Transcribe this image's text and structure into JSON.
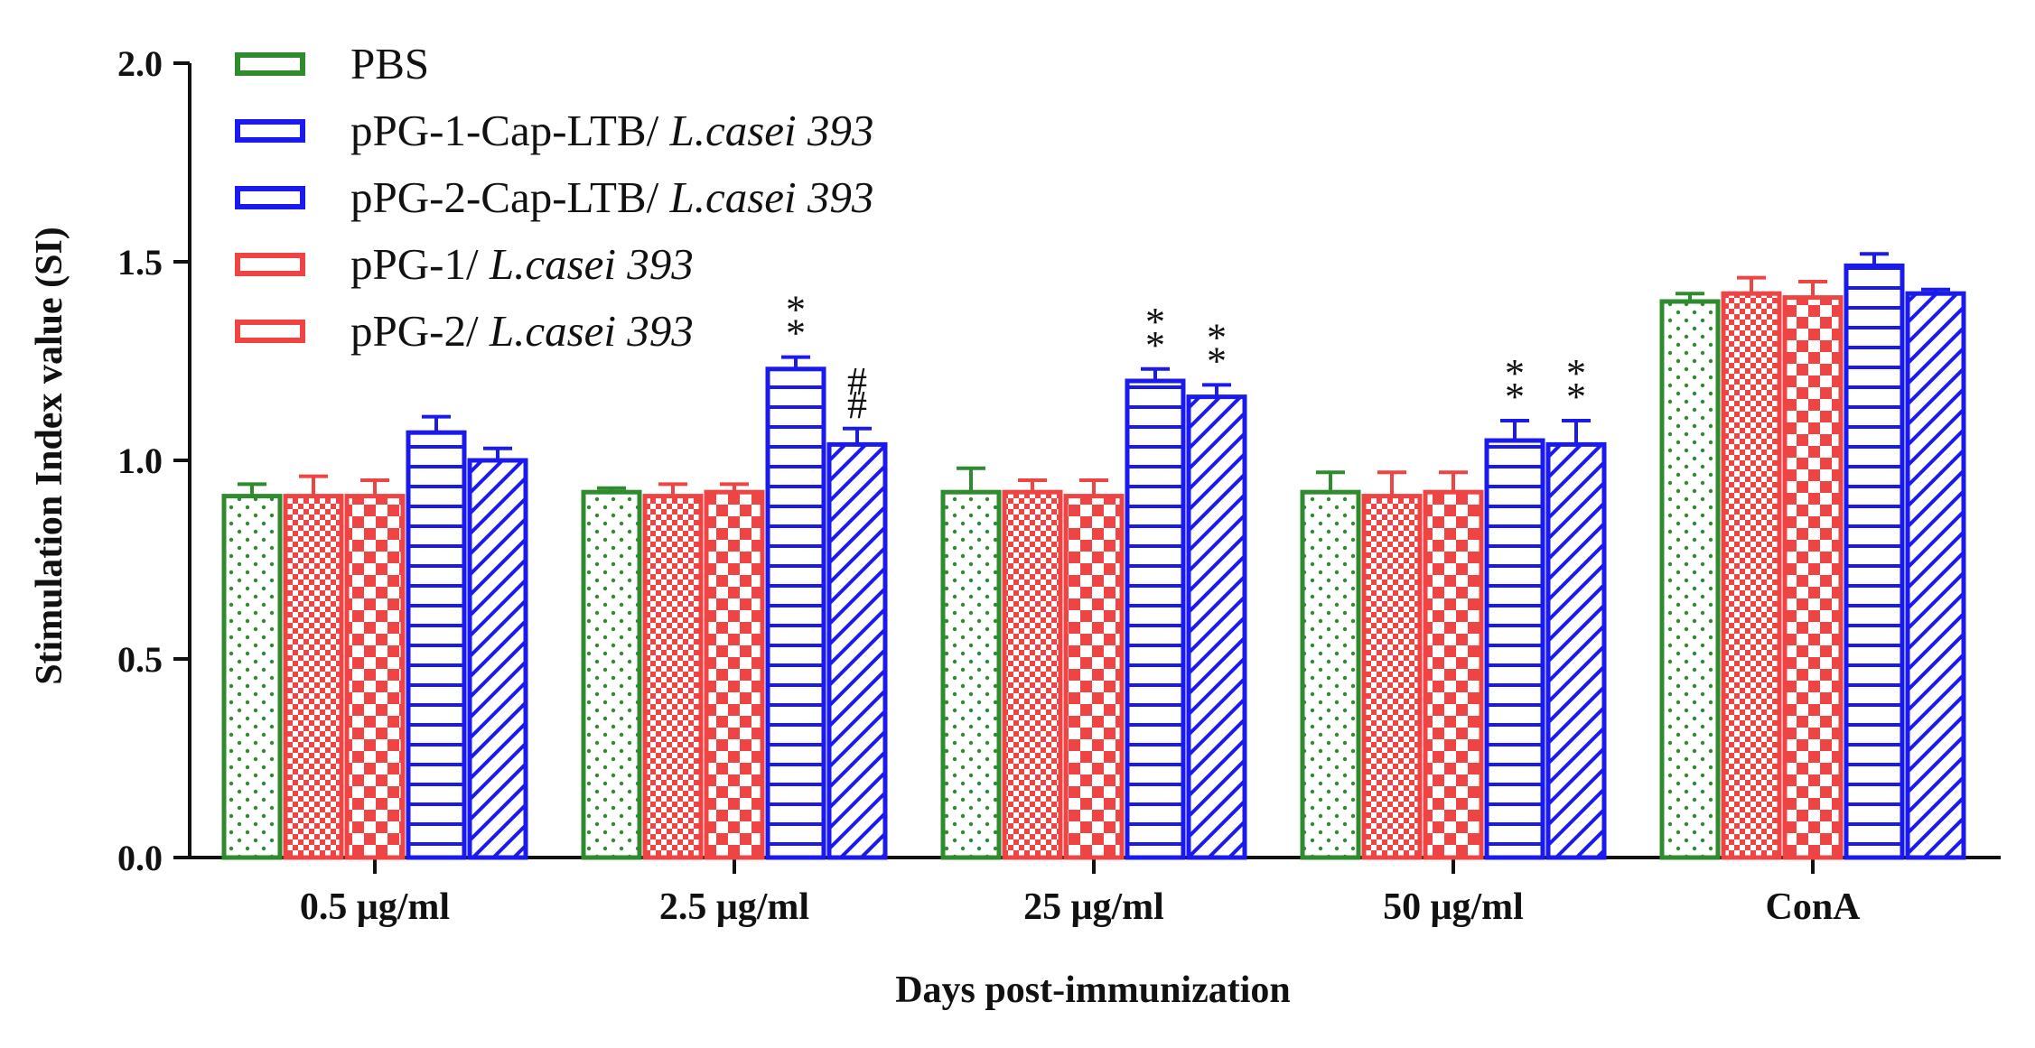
{
  "chart_data": {
    "type": "bar",
    "title": "",
    "xlabel": "Days post-immunization",
    "ylabel": "Stimulation Index value (SI)",
    "ylim": [
      0,
      2.0
    ],
    "yticks": [
      "0.0",
      "0.5",
      "1.0",
      "1.5",
      "2.0"
    ],
    "categories": [
      "0.5 μg/ml",
      "2.5 μg/ml",
      "25 μg/ml",
      "50 μg/ml",
      "ConA"
    ],
    "series": [
      {
        "name": "PBS",
        "name_main": "PBS",
        "name_italic": "",
        "color": "#2e8b2e",
        "pattern": "dots",
        "values": [
          0.91,
          0.92,
          0.92,
          0.92,
          1.4
        ],
        "errors": [
          0.03,
          0.01,
          0.06,
          0.05,
          0.02
        ]
      },
      {
        "name": "pPG-1-Cap-LTB/ L.casei 393",
        "name_main": "pPG-1-Cap-LTB/ ",
        "name_italic": "L.casei 393",
        "color": "#1a1aee",
        "pattern": "hlines",
        "values": [
          1.07,
          1.23,
          1.2,
          1.05,
          1.49
        ],
        "errors": [
          0.04,
          0.03,
          0.03,
          0.05,
          0.03
        ]
      },
      {
        "name": "pPG-2-Cap-LTB/ L.casei 393",
        "name_main": "pPG-2-Cap-LTB/ ",
        "name_italic": "L.casei 393",
        "color": "#1a1aee",
        "pattern": "diag",
        "values": [
          1.0,
          1.04,
          1.16,
          1.04,
          1.42
        ],
        "errors": [
          0.03,
          0.04,
          0.03,
          0.06,
          0.01
        ]
      },
      {
        "name": "pPG-1/ L.casei 393",
        "name_main": "pPG-1/ ",
        "name_italic": "L.casei 393",
        "color": "#ee4444",
        "pattern": "fine-check",
        "values": [
          0.91,
          0.91,
          0.92,
          0.91,
          1.42
        ],
        "errors": [
          0.05,
          0.03,
          0.03,
          0.06,
          0.04
        ]
      },
      {
        "name": "pPG-2/ L.casei 393",
        "name_main": "pPG-2/ ",
        "name_italic": "L.casei 393",
        "color": "#ee4444",
        "pattern": "coarse-check",
        "values": [
          0.91,
          0.92,
          0.91,
          0.92,
          1.41
        ],
        "errors": [
          0.04,
          0.02,
          0.04,
          0.05,
          0.04
        ]
      }
    ],
    "bar_order": [
      0,
      3,
      4,
      1,
      2
    ],
    "annotations": [
      {
        "category": 1,
        "series": 1,
        "text": "**"
      },
      {
        "category": 1,
        "series": 2,
        "text": "##"
      },
      {
        "category": 2,
        "series": 1,
        "text": "**"
      },
      {
        "category": 2,
        "series": 2,
        "text": "**"
      },
      {
        "category": 3,
        "series": 1,
        "text": "**"
      },
      {
        "category": 3,
        "series": 2,
        "text": "**"
      }
    ]
  }
}
